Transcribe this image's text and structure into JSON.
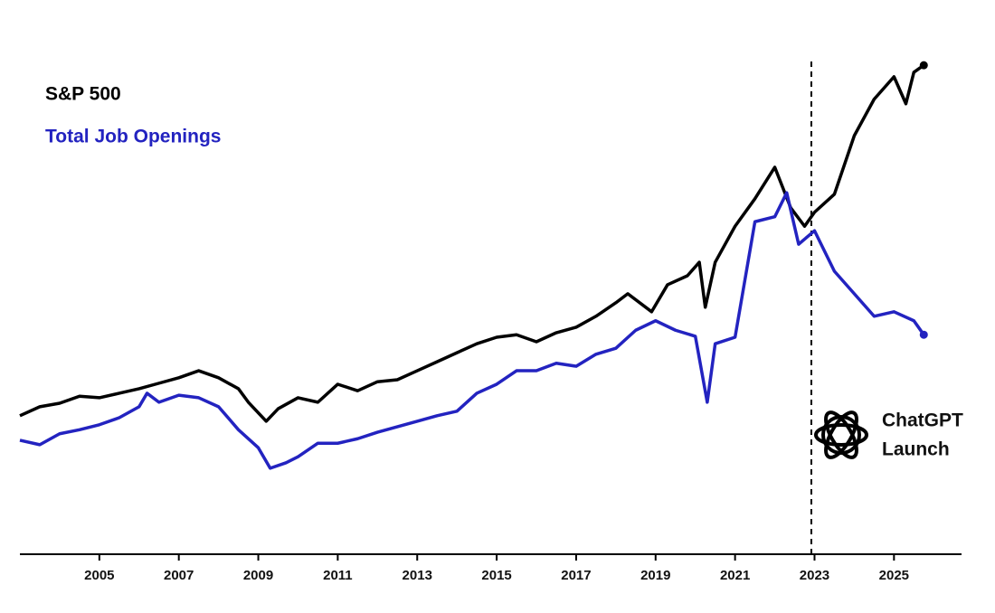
{
  "chart_data": {
    "type": "line",
    "xlim": [
      2003,
      2026.7
    ],
    "xticks": [
      2005,
      2007,
      2009,
      2011,
      2013,
      2015,
      2017,
      2019,
      2021,
      2023,
      2025
    ],
    "ylim": [
      0,
      100
    ],
    "series": [
      {
        "name": "S&P 500",
        "color": "#000000",
        "x": [
          2003.0,
          2003.5,
          2004.0,
          2004.5,
          2005.0,
          2005.5,
          2006.0,
          2006.5,
          2007.0,
          2007.5,
          2008.0,
          2008.5,
          2008.75,
          2009.2,
          2009.5,
          2010.0,
          2010.5,
          2011.0,
          2011.5,
          2012.0,
          2012.5,
          2013.0,
          2013.5,
          2014.0,
          2014.5,
          2015.0,
          2015.5,
          2016.0,
          2016.5,
          2017.0,
          2017.5,
          2018.0,
          2018.3,
          2018.9,
          2019.3,
          2019.8,
          2020.1,
          2020.25,
          2020.5,
          2021.0,
          2021.5,
          2022.0,
          2022.4,
          2022.75,
          2023.0,
          2023.5,
          2024.0,
          2024.5,
          2025.0,
          2025.3,
          2025.5,
          2025.75
        ],
        "values": [
          27.7,
          29.5,
          30.2,
          31.6,
          31.3,
          32.2,
          33.1,
          34.2,
          35.3,
          36.7,
          35.3,
          33.1,
          30.4,
          26.6,
          29.1,
          31.3,
          30.4,
          34.0,
          32.7,
          34.5,
          34.9,
          36.7,
          38.5,
          40.3,
          42.1,
          43.4,
          43.9,
          42.5,
          44.3,
          45.4,
          47.6,
          50.3,
          52.1,
          48.5,
          53.9,
          55.7,
          58.4,
          49.4,
          58.4,
          65.6,
          71.1,
          77.4,
          69.3,
          65.6,
          68.4,
          72.0,
          83.7,
          91.0,
          95.5,
          90.1,
          96.4,
          97.8
        ]
      },
      {
        "name": "Total Job Openings",
        "color": "#2323c0",
        "x": [
          2003.0,
          2003.5,
          2004.0,
          2004.5,
          2005.0,
          2005.5,
          2006.0,
          2006.2,
          2006.5,
          2007.0,
          2007.5,
          2008.0,
          2008.5,
          2009.0,
          2009.3,
          2009.7,
          2010.0,
          2010.5,
          2011.0,
          2011.5,
          2012.0,
          2013.0,
          2013.5,
          2014.0,
          2014.5,
          2015.0,
          2015.5,
          2016.0,
          2016.5,
          2017.0,
          2017.5,
          2018.0,
          2018.5,
          2019.0,
          2019.5,
          2020.0,
          2020.3,
          2020.5,
          2021.0,
          2021.5,
          2022.0,
          2022.3,
          2022.6,
          2023.0,
          2023.5,
          2024.0,
          2024.5,
          2025.0,
          2025.5,
          2025.75
        ],
        "values": [
          22.8,
          21.9,
          24.1,
          24.9,
          25.9,
          27.3,
          29.5,
          32.2,
          30.4,
          31.8,
          31.3,
          29.5,
          24.9,
          21.3,
          17.2,
          18.3,
          19.5,
          22.2,
          22.2,
          23.1,
          24.4,
          26.6,
          27.7,
          28.6,
          32.2,
          34.0,
          36.7,
          36.7,
          38.2,
          37.6,
          40.0,
          41.2,
          44.8,
          46.7,
          44.8,
          43.6,
          30.4,
          42.1,
          43.4,
          66.5,
          67.5,
          72.3,
          62.0,
          64.7,
          56.6,
          52.1,
          47.6,
          48.5,
          46.7,
          43.9
        ]
      }
    ],
    "annotation": {
      "x": 2022.92,
      "text": [
        "ChatGPT",
        "Launch"
      ]
    }
  }
}
